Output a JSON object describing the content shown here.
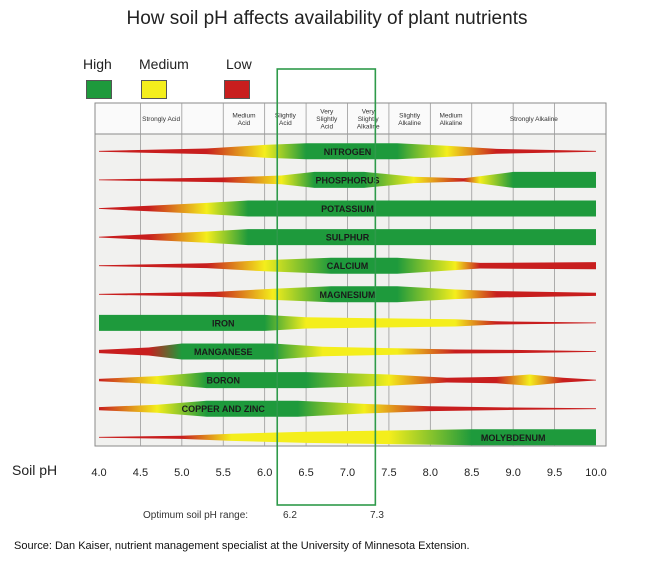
{
  "title": "How soil pH affects availability of plant nutrients",
  "legend": [
    {
      "label": "High",
      "color": "#1e9a3c"
    },
    {
      "label": "Medium",
      "color": "#f4ee1c"
    },
    {
      "label": "Low",
      "color": "#c81e1e"
    }
  ],
  "axis_label": "Soil pH",
  "optimum": {
    "label": "Optimum soil pH range:",
    "low": "6.2",
    "high": "7.3"
  },
  "source": "Source: Dan Kaiser, nutrient management specialist at the University of Minnesota Extension.",
  "chart_data": {
    "type": "heatmap",
    "title": "How soil pH affects availability of plant nutrients",
    "xlabel": "Soil pH",
    "xlim": [
      4.0,
      10.0
    ],
    "x_ticks": [
      "4.0",
      "4.5",
      "5.0",
      "5.5",
      "6.0",
      "6.5",
      "7.0",
      "7.5",
      "8.0",
      "8.5",
      "9.0",
      "9.5",
      "10.0"
    ],
    "categories_header": [
      {
        "label": [
          "Strongly Acid"
        ],
        "from": 4.0,
        "to": 5.5
      },
      {
        "label": [
          "Medium",
          "Acid"
        ],
        "from": 5.5,
        "to": 6.0
      },
      {
        "label": [
          "Slightly",
          "Acid"
        ],
        "from": 6.0,
        "to": 6.5
      },
      {
        "label": [
          "Very",
          "Slightly",
          "Acid"
        ],
        "from": 6.5,
        "to": 7.0
      },
      {
        "label": [
          "Very",
          "Slightly",
          "Alkaline"
        ],
        "from": 7.0,
        "to": 7.5
      },
      {
        "label": [
          "Slightly",
          "Alkaline"
        ],
        "from": 7.5,
        "to": 8.0
      },
      {
        "label": [
          "Medium",
          "Alkaline"
        ],
        "from": 8.0,
        "to": 8.5
      },
      {
        "label": [
          "Strongly Alkaline"
        ],
        "from": 8.5,
        "to": 10.0
      }
    ],
    "optimum_range": [
      6.2,
      7.3
    ],
    "series": [
      {
        "name": "NITROGEN",
        "label_ph": 7.0,
        "profile": [
          [
            4.0,
            0,
            "L"
          ],
          [
            5.3,
            0.35,
            "L"
          ],
          [
            6.0,
            0.8,
            "M"
          ],
          [
            6.5,
            1,
            "H"
          ],
          [
            7.6,
            1,
            "H"
          ],
          [
            8.2,
            0.7,
            "M"
          ],
          [
            8.8,
            0.3,
            "L"
          ],
          [
            10.0,
            0,
            "L"
          ]
        ]
      },
      {
        "name": "PHOSPHORUS",
        "label_ph": 7.0,
        "profile": [
          [
            4.0,
            0,
            "L"
          ],
          [
            5.5,
            0.3,
            "L"
          ],
          [
            6.2,
            0.55,
            "M"
          ],
          [
            6.6,
            1,
            "H"
          ],
          [
            7.2,
            1,
            "H"
          ],
          [
            7.8,
            0.4,
            "M"
          ],
          [
            8.4,
            0.2,
            "L"
          ],
          [
            8.6,
            0.45,
            "M"
          ],
          [
            9.0,
            1,
            "H"
          ],
          [
            10.0,
            1,
            "H"
          ]
        ]
      },
      {
        "name": "POTASSIUM",
        "label_ph": 7.0,
        "profile": [
          [
            4.0,
            0,
            "L"
          ],
          [
            4.6,
            0.35,
            "L"
          ],
          [
            5.3,
            0.7,
            "M"
          ],
          [
            5.8,
            1,
            "H"
          ],
          [
            10.0,
            1,
            "H"
          ]
        ]
      },
      {
        "name": "SULPHUR",
        "label_ph": 7.0,
        "profile": [
          [
            4.0,
            0,
            "L"
          ],
          [
            4.6,
            0.35,
            "L"
          ],
          [
            5.3,
            0.7,
            "M"
          ],
          [
            5.8,
            1,
            "H"
          ],
          [
            10.0,
            1,
            "H"
          ]
        ]
      },
      {
        "name": "CALCIUM",
        "label_ph": 7.0,
        "profile": [
          [
            4.0,
            0,
            "L"
          ],
          [
            5.3,
            0.3,
            "L"
          ],
          [
            6.0,
            0.7,
            "M"
          ],
          [
            6.8,
            1,
            "H"
          ],
          [
            7.6,
            1,
            "H"
          ],
          [
            8.3,
            0.55,
            "M"
          ],
          [
            8.6,
            0.35,
            "L"
          ],
          [
            10.0,
            0.45,
            "L"
          ]
        ]
      },
      {
        "name": "MAGNESIUM",
        "label_ph": 7.0,
        "profile": [
          [
            4.0,
            0,
            "L"
          ],
          [
            5.4,
            0.3,
            "L"
          ],
          [
            6.1,
            0.7,
            "M"
          ],
          [
            6.8,
            1,
            "H"
          ],
          [
            7.6,
            1,
            "H"
          ],
          [
            8.3,
            0.6,
            "M"
          ],
          [
            8.8,
            0.4,
            "L"
          ],
          [
            10.0,
            0.2,
            "L"
          ]
        ]
      },
      {
        "name": "IRON",
        "label_ph": 5.5,
        "profile": [
          [
            4.0,
            1,
            "H"
          ],
          [
            6.0,
            1,
            "H"
          ],
          [
            6.5,
            0.7,
            "M"
          ],
          [
            8.3,
            0.45,
            "M"
          ],
          [
            8.8,
            0.2,
            "L"
          ],
          [
            10.0,
            0.05,
            "L"
          ]
        ]
      },
      {
        "name": "MANGANESE",
        "label_ph": 5.5,
        "profile": [
          [
            4.0,
            0.2,
            "L"
          ],
          [
            4.6,
            0.5,
            "L"
          ],
          [
            5.0,
            1,
            "H"
          ],
          [
            6.1,
            1,
            "H"
          ],
          [
            6.7,
            0.6,
            "M"
          ],
          [
            7.6,
            0.4,
            "M"
          ],
          [
            8.3,
            0.25,
            "L"
          ],
          [
            9.0,
            0.2,
            "L"
          ],
          [
            10.0,
            0.05,
            "L"
          ]
        ]
      },
      {
        "name": "BORON",
        "label_ph": 5.5,
        "profile": [
          [
            4.0,
            0.15,
            "L"
          ],
          [
            4.7,
            0.5,
            "M"
          ],
          [
            5.3,
            1,
            "H"
          ],
          [
            6.5,
            1,
            "H"
          ],
          [
            7.5,
            0.7,
            "M"
          ],
          [
            8.2,
            0.3,
            "L"
          ],
          [
            8.8,
            0.4,
            "L"
          ],
          [
            9.2,
            0.7,
            "M"
          ],
          [
            9.6,
            0.3,
            "L"
          ],
          [
            10.0,
            0.05,
            "L"
          ]
        ]
      },
      {
        "name": "COPPER AND ZINC",
        "label_ph": 5.5,
        "profile": [
          [
            4.0,
            0.2,
            "L"
          ],
          [
            4.7,
            0.5,
            "M"
          ],
          [
            5.3,
            1,
            "H"
          ],
          [
            6.4,
            1,
            "H"
          ],
          [
            7.2,
            0.6,
            "M"
          ],
          [
            8.0,
            0.3,
            "L"
          ],
          [
            9.0,
            0.15,
            "L"
          ],
          [
            10.0,
            0.05,
            "L"
          ]
        ]
      },
      {
        "name": "MOLYBDENUM",
        "label_ph": 9.0,
        "profile": [
          [
            4.0,
            0,
            "L"
          ],
          [
            5.0,
            0.2,
            "L"
          ],
          [
            5.6,
            0.45,
            "M"
          ],
          [
            6.5,
            0.7,
            "M"
          ],
          [
            7.5,
            0.85,
            "M"
          ],
          [
            8.5,
            1,
            "H"
          ],
          [
            10.0,
            1,
            "H"
          ]
        ]
      }
    ]
  }
}
